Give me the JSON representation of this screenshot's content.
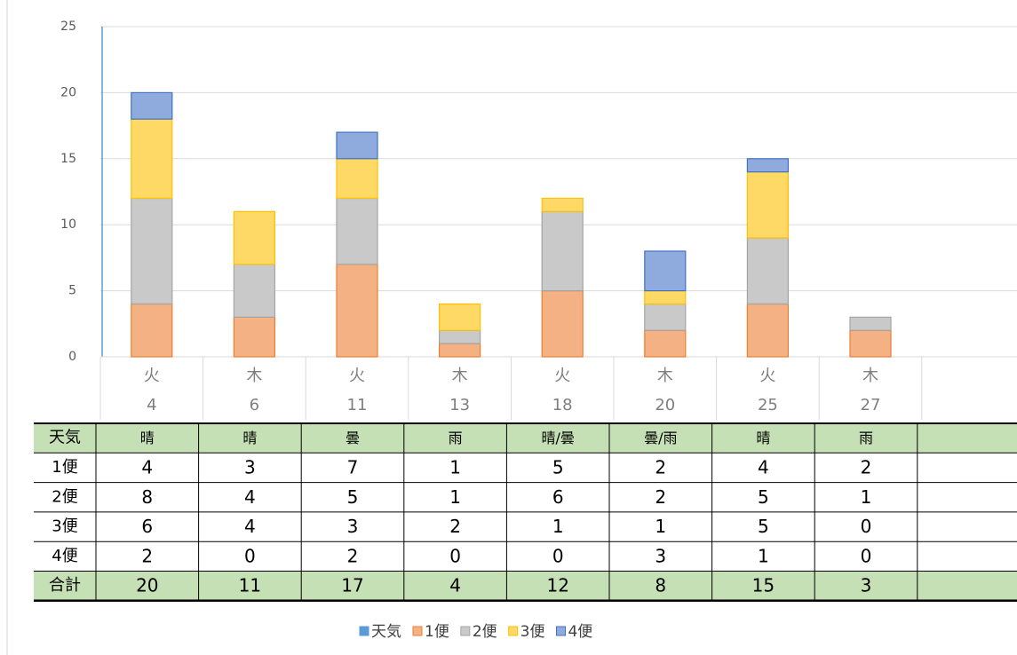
{
  "chart_data": {
    "type": "bar",
    "stacked": true,
    "categories": [
      [
        "火",
        "4"
      ],
      [
        "木",
        "6"
      ],
      [
        "火",
        "11"
      ],
      [
        "木",
        "13"
      ],
      [
        "火",
        "18"
      ],
      [
        "木",
        "20"
      ],
      [
        "火",
        "25"
      ],
      [
        "木",
        "27"
      ],
      null
    ],
    "weather": {
      "name": "天気",
      "color": "#5b9bd5",
      "values": [
        "晴",
        "晴",
        "曇",
        "雨",
        "晴/曇",
        "曇/雨",
        "晴",
        "雨",
        null
      ]
    },
    "series": [
      {
        "name": "1便",
        "color": "#f4b183",
        "values": [
          4,
          3,
          7,
          1,
          5,
          2,
          4,
          2,
          null
        ]
      },
      {
        "name": "2便",
        "color": "#c9c9c9",
        "values": [
          8,
          4,
          5,
          1,
          6,
          2,
          5,
          1,
          null
        ]
      },
      {
        "name": "3便",
        "color": "#ffd966",
        "values": [
          6,
          4,
          3,
          2,
          1,
          1,
          5,
          0,
          null
        ]
      },
      {
        "name": "4便",
        "color": "#8faadc",
        "values": [
          2,
          0,
          2,
          0,
          0,
          3,
          1,
          0,
          null
        ]
      }
    ],
    "total": {
      "name": "合計",
      "values": [
        20,
        11,
        17,
        4,
        12,
        8,
        15,
        3,
        null
      ]
    },
    "ylim": [
      0,
      25
    ],
    "yticks": [
      0,
      5,
      10,
      15,
      20,
      25
    ],
    "grid": true
  }
}
